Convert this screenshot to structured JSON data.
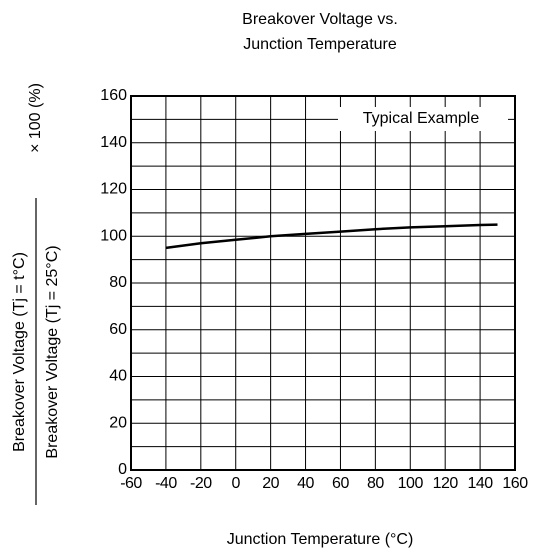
{
  "chart_data": {
    "type": "line",
    "title": [
      "Breakover Voltage vs.",
      "Junction Temperature"
    ],
    "x_label": "Junction Temperature  (°C)",
    "y_label": {
      "numerator": "Breakover Voltage  (Tj = t°C)",
      "denominator": "Breakover Voltage  (Tj = 25°C)",
      "factor": "× 100 (%)"
    },
    "annotation": "Typical Example",
    "x": [
      -40,
      -20,
      0,
      20,
      40,
      60,
      80,
      100,
      120,
      140,
      150
    ],
    "series": [
      {
        "name": "Typical Example",
        "color": "#000000",
        "values": [
          95,
          97,
          98.5,
          100,
          101,
          102,
          103,
          103.8,
          104.3,
          104.8,
          105
        ]
      }
    ],
    "xlim": [
      -60,
      160
    ],
    "xticks": [
      -60,
      -40,
      -20,
      0,
      20,
      40,
      60,
      80,
      100,
      120,
      140,
      160
    ],
    "ylim": [
      0,
      160
    ],
    "yticks": [
      0,
      20,
      40,
      60,
      80,
      100,
      120,
      140,
      160
    ],
    "y_minor_grid": [
      10,
      30,
      50,
      70,
      90,
      110,
      130,
      150
    ],
    "grid": true
  }
}
